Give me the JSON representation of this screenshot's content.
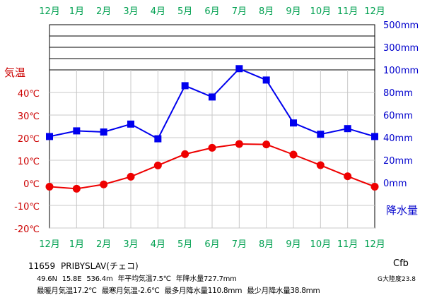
{
  "chart_data": {
    "type": "line",
    "x_axis": {
      "categories": [
        "12月",
        "1月",
        "2月",
        "3月",
        "4月",
        "5月",
        "6月",
        "7月",
        "8月",
        "9月",
        "10月",
        "11月",
        "12月"
      ],
      "color": "#00a050"
    },
    "temperature_axis": {
      "title": "気温",
      "ticks": [
        "40℃",
        "30℃",
        "20℃",
        "10℃",
        "0℃",
        "-10℃",
        "-20℃"
      ],
      "tick_values": [
        40,
        30,
        20,
        10,
        0,
        -10,
        -20
      ],
      "range": [
        -20,
        40
      ],
      "color": "#cc0000"
    },
    "precipitation_axis": {
      "title": "降水量",
      "ticks": [
        "500mm",
        "300mm",
        "100mm",
        "80mm",
        "60mm",
        "40mm",
        "20mm",
        "0mm"
      ],
      "tick_values": [
        500,
        300,
        100,
        80,
        60,
        40,
        20,
        0
      ],
      "color": "#0000cc"
    },
    "series": [
      {
        "color": "#ee0000",
        "marker": "circle",
        "axis": "temperature",
        "values": [
          -1.7,
          -2.6,
          -0.7,
          2.7,
          7.7,
          12.7,
          15.5,
          17.2,
          17.0,
          12.5,
          7.8,
          2.9,
          -1.7
        ]
      },
      {
        "color": "#0000ee",
        "marker": "square",
        "axis": "precipitation",
        "values": [
          41,
          46,
          45,
          52,
          39,
          86,
          76,
          110.8,
          91,
          53,
          43,
          48,
          41
        ]
      }
    ],
    "grid": true
  },
  "station": {
    "id": "11659",
    "name": "PRIBYSLAV(チェコ)",
    "lat": "49.6N",
    "lon": "15.8E",
    "elevation": "536.4m",
    "mean_temp": "年平均気温7.5℃",
    "annual_precip": "年降水量727.7mm",
    "warmest": "最暖月気温17.2℃",
    "coldest": "最寒月気温-2.6℃",
    "max_precip": "最多月降水量110.8mm",
    "min_precip": "最少月降水量38.8mm",
    "climate_code": "Cfb",
    "continentality": "G大陸度23.8"
  }
}
